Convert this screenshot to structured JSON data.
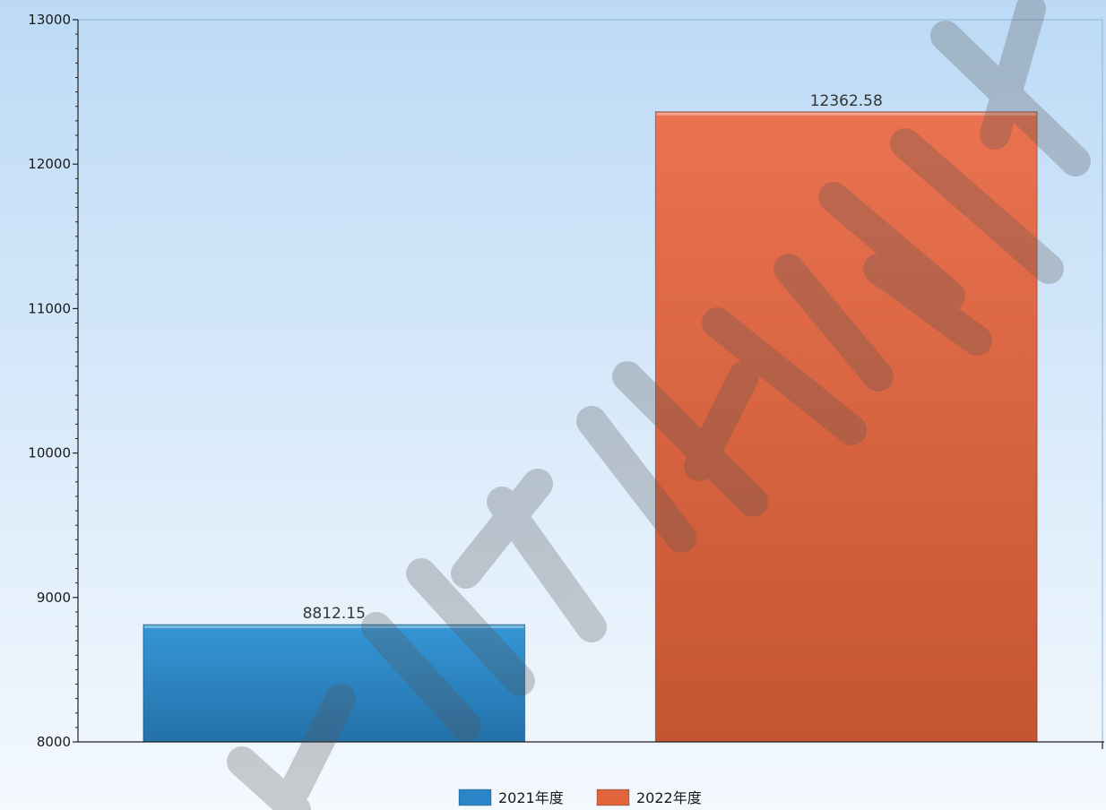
{
  "chart_data": {
    "type": "bar",
    "categories": [
      "2021年度",
      "2022年度"
    ],
    "values": [
      8812.15,
      12362.58
    ],
    "data_labels": [
      "8812.15",
      "12362.58"
    ],
    "colors": [
      "#2a86c8",
      "#e0643c"
    ],
    "ylim": [
      8000,
      13000
    ],
    "yticks": [
      8000,
      9000,
      10000,
      11000,
      12000,
      13000
    ],
    "ytick_labels": [
      "8000",
      "9000",
      "10000",
      "11000",
      "12000",
      "13000"
    ],
    "legend": {
      "position": "bottom-center",
      "entries": [
        "2021年度",
        "2022年度"
      ]
    },
    "grid": false,
    "title": "",
    "xlabel": "",
    "ylabel": ""
  },
  "watermark_present": true
}
